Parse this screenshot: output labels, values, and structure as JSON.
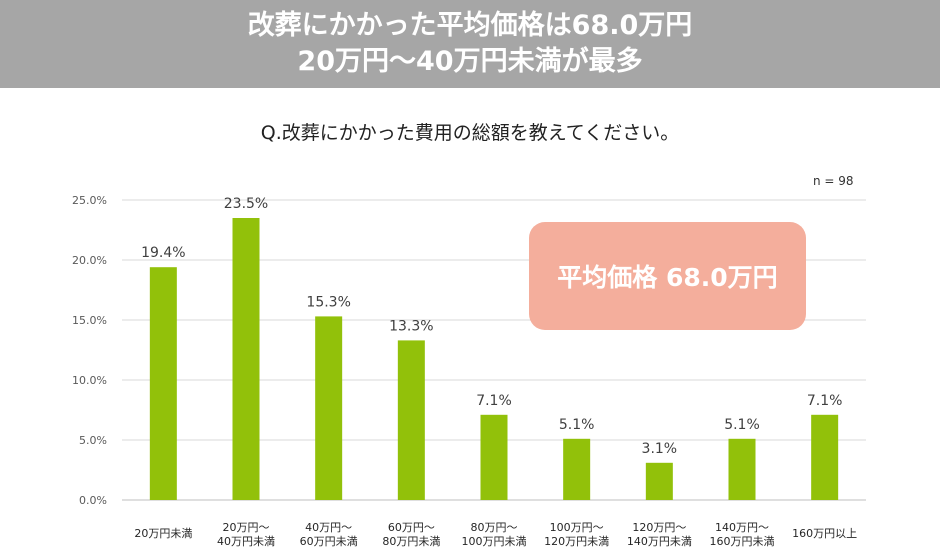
{
  "banner": {
    "line1": "改葬にかかった平均価格は68.0万円",
    "line2": "20万円～40万円未満が最多"
  },
  "question": "Q.改葬にかかった費用の総額を教えてください。",
  "n_label": "n = 98",
  "average_box": "平均価格 68.0万円",
  "colors": {
    "bar": "#92c10a",
    "banner": "#a6a6a6",
    "average_box": "#f4ae9c"
  },
  "chart_data": {
    "type": "bar",
    "categories": [
      [
        "20万円未満"
      ],
      [
        "20万円～",
        "40万円未満"
      ],
      [
        "40万円～",
        "60万円未満"
      ],
      [
        "60万円～",
        "80万円未満"
      ],
      [
        "80万円～",
        "100万円未満"
      ],
      [
        "100万円～",
        "120万円未満"
      ],
      [
        "120万円～",
        "140万円未満"
      ],
      [
        "140万円～",
        "160万円未満"
      ],
      [
        "160万円以上"
      ]
    ],
    "values": [
      19.4,
      23.5,
      15.3,
      13.3,
      7.1,
      5.1,
      3.1,
      5.1,
      7.1
    ],
    "value_labels": [
      "19.4%",
      "23.5%",
      "15.3%",
      "13.3%",
      "7.1%",
      "5.1%",
      "3.1%",
      "5.1%",
      "7.1%"
    ],
    "yticks": [
      "0.0%",
      "5.0%",
      "10.0%",
      "15.0%",
      "20.0%",
      "25.0%"
    ],
    "ylim": [
      0,
      25
    ],
    "grid": true,
    "title": "",
    "xlabel": "",
    "ylabel": ""
  }
}
